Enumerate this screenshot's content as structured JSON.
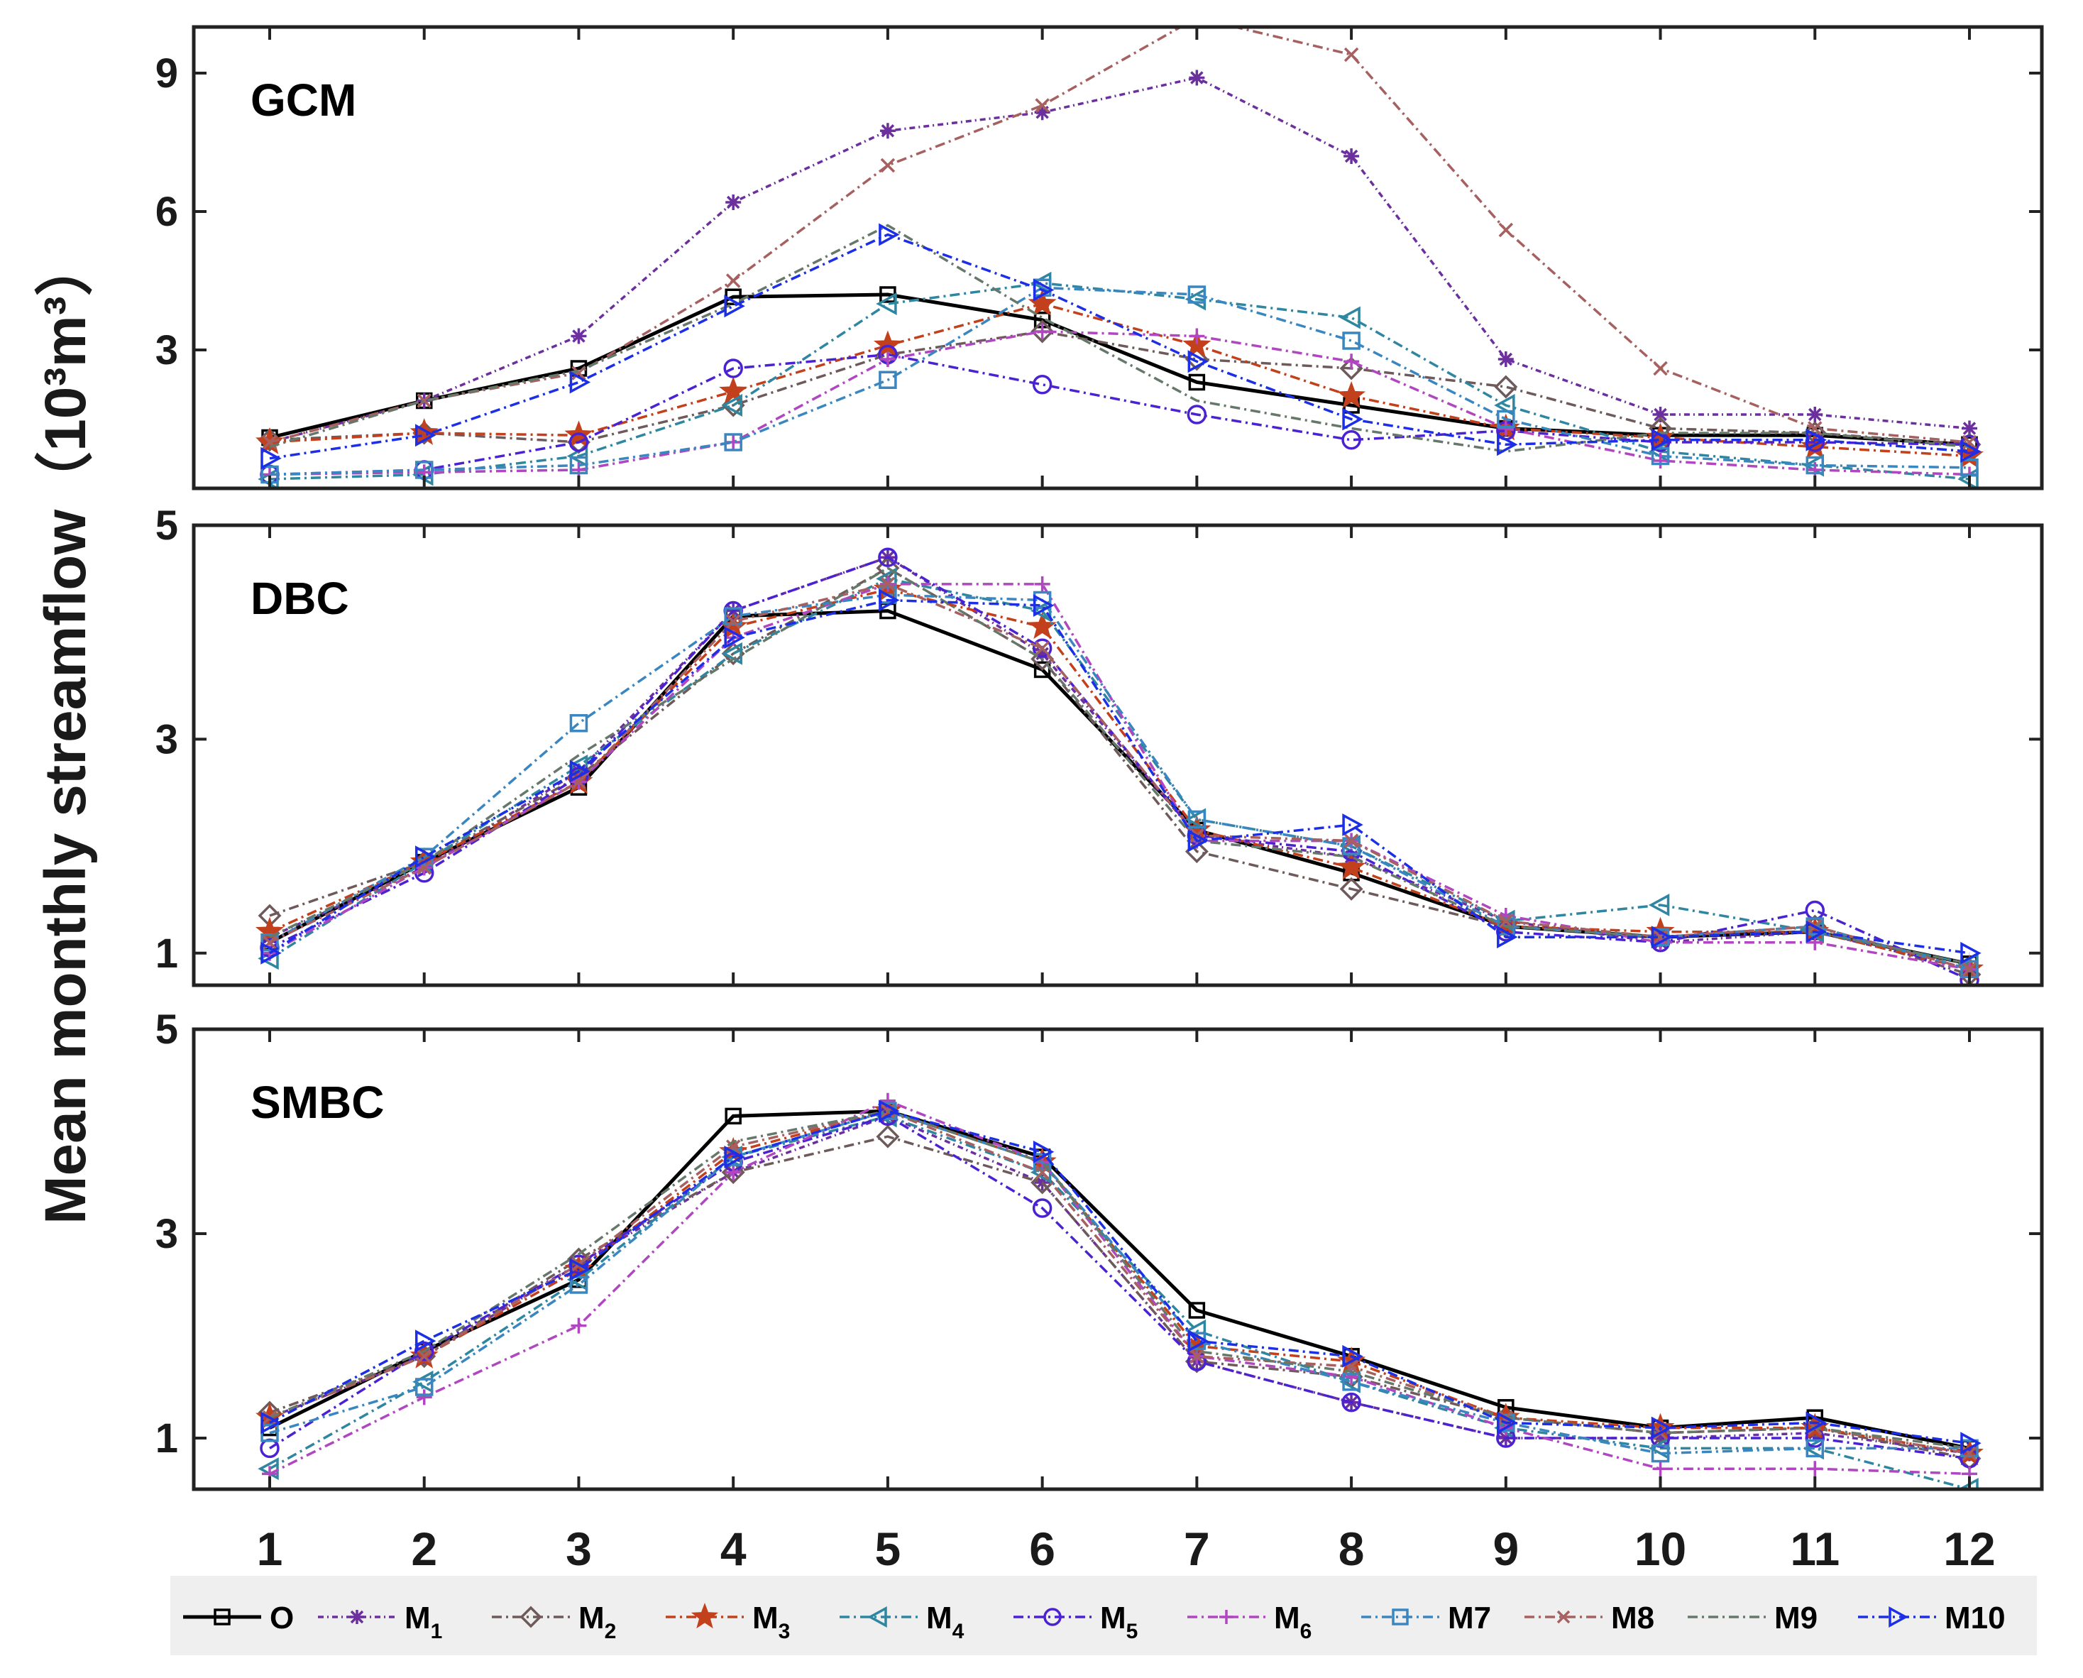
{
  "ylabel": "Mean monthly streamflow",
  "ylabel_unit": "（10³m³）",
  "chart_data": [
    {
      "type": "line",
      "title": "GCM",
      "categories": [
        "1",
        "2",
        "3",
        "4",
        "5",
        "6",
        "7",
        "8",
        "9",
        "10",
        "11",
        "12"
      ],
      "x": [
        1,
        2,
        3,
        4,
        5,
        6,
        7,
        8,
        9,
        10,
        11,
        12
      ],
      "ylim": [
        0,
        10
      ],
      "yticks": [
        "3",
        "6",
        "9"
      ],
      "series": [
        {
          "name": "O",
          "values": [
            1.1,
            1.9,
            2.6,
            4.15,
            4.2,
            3.65,
            2.3,
            1.8,
            1.3,
            1.15,
            1.15,
            0.95
          ]
        },
        {
          "name": "M1",
          "values": [
            1.0,
            1.9,
            3.3,
            6.2,
            7.75,
            8.15,
            8.9,
            7.2,
            2.8,
            1.6,
            1.6,
            1.3
          ]
        },
        {
          "name": "M2",
          "values": [
            1.05,
            1.2,
            1.0,
            1.8,
            2.9,
            3.4,
            2.8,
            2.6,
            2.2,
            1.3,
            1.2,
            0.95
          ]
        },
        {
          "name": "M3",
          "values": [
            1.0,
            1.2,
            1.15,
            2.1,
            3.1,
            4.0,
            3.1,
            2.0,
            1.3,
            1.1,
            0.9,
            0.7
          ]
        },
        {
          "name": "M4",
          "values": [
            0.2,
            0.3,
            0.7,
            1.8,
            4.0,
            4.45,
            4.1,
            3.7,
            1.8,
            0.8,
            0.5,
            0.2
          ]
        },
        {
          "name": "M5",
          "values": [
            0.3,
            0.4,
            1.0,
            2.6,
            2.9,
            2.25,
            1.6,
            1.05,
            1.25,
            1.0,
            1.0,
            0.95
          ]
        },
        {
          "name": "M6",
          "values": [
            0.3,
            0.35,
            0.4,
            1.0,
            2.8,
            3.4,
            3.3,
            2.75,
            1.3,
            0.6,
            0.4,
            0.3
          ]
        },
        {
          "name": "M7",
          "values": [
            0.3,
            0.4,
            0.5,
            1.0,
            2.35,
            4.35,
            4.2,
            3.2,
            1.5,
            0.7,
            0.5,
            0.45
          ]
        },
        {
          "name": "M8",
          "values": [
            1.0,
            1.9,
            2.5,
            4.5,
            7.0,
            8.3,
            10.2,
            9.4,
            5.6,
            2.6,
            1.3,
            1.0
          ]
        },
        {
          "name": "M9",
          "values": [
            0.9,
            1.9,
            2.55,
            4.0,
            5.7,
            3.7,
            1.9,
            1.3,
            0.8,
            1.2,
            1.2,
            0.9
          ]
        },
        {
          "name": "M10",
          "values": [
            0.65,
            1.15,
            2.3,
            3.95,
            5.5,
            4.3,
            2.75,
            1.5,
            0.95,
            1.05,
            1.05,
            0.8
          ]
        }
      ]
    },
    {
      "type": "line",
      "title": "DBC",
      "categories": [
        "1",
        "2",
        "3",
        "4",
        "5",
        "6",
        "7",
        "8",
        "9",
        "10",
        "11",
        "12"
      ],
      "x": [
        1,
        2,
        3,
        4,
        5,
        6,
        7,
        8,
        9,
        10,
        11,
        12
      ],
      "ylim": [
        0.7,
        5
      ],
      "yticks": [
        "1",
        "3",
        "5"
      ],
      "series": [
        {
          "name": "O",
          "values": [
            1.1,
            1.85,
            2.55,
            4.15,
            4.2,
            3.65,
            2.15,
            1.75,
            1.25,
            1.15,
            1.2,
            0.9
          ]
        },
        {
          "name": "M1",
          "values": [
            1.15,
            1.8,
            2.7,
            4.2,
            4.7,
            3.8,
            2.1,
            1.9,
            1.3,
            1.1,
            1.2,
            0.85
          ]
        },
        {
          "name": "M2",
          "values": [
            1.35,
            1.85,
            2.65,
            3.8,
            4.6,
            3.75,
            1.95,
            1.6,
            1.25,
            1.15,
            1.25,
            0.8
          ]
        },
        {
          "name": "M3",
          "values": [
            1.2,
            1.85,
            2.6,
            4.05,
            4.4,
            4.05,
            2.15,
            1.8,
            1.25,
            1.2,
            1.2,
            0.85
          ]
        },
        {
          "name": "M4",
          "values": [
            0.95,
            1.85,
            2.75,
            3.8,
            4.5,
            4.2,
            2.25,
            2.0,
            1.3,
            1.45,
            1.2,
            0.9
          ]
        },
        {
          "name": "M5",
          "values": [
            1.05,
            1.75,
            2.65,
            4.2,
            4.7,
            3.85,
            2.1,
            1.95,
            1.2,
            1.1,
            1.4,
            0.75
          ]
        },
        {
          "name": "M6",
          "values": [
            1.0,
            1.8,
            2.6,
            3.95,
            4.45,
            4.45,
            2.05,
            2.05,
            1.35,
            1.1,
            1.1,
            0.85
          ]
        },
        {
          "name": "M7",
          "values": [
            1.1,
            1.9,
            3.15,
            4.15,
            4.35,
            4.3,
            2.25,
            2.0,
            1.25,
            1.15,
            1.25,
            0.85
          ]
        },
        {
          "name": "M8",
          "values": [
            1.1,
            1.8,
            2.6,
            4.1,
            4.45,
            3.85,
            2.1,
            2.05,
            1.3,
            1.15,
            1.25,
            0.85
          ]
        },
        {
          "name": "M9",
          "values": [
            1.15,
            1.85,
            2.85,
            3.75,
            4.6,
            3.75,
            2.05,
            1.9,
            1.25,
            1.15,
            1.2,
            0.9
          ]
        },
        {
          "name": "M10",
          "values": [
            1.0,
            1.9,
            2.7,
            3.95,
            4.3,
            4.25,
            2.05,
            2.2,
            1.15,
            1.15,
            1.2,
            1.0
          ]
        }
      ]
    },
    {
      "type": "line",
      "title": "SMBC",
      "categories": [
        "1",
        "2",
        "3",
        "4",
        "5",
        "6",
        "7",
        "8",
        "9",
        "10",
        "11",
        "12"
      ],
      "x": [
        1,
        2,
        3,
        4,
        5,
        6,
        7,
        8,
        9,
        10,
        11,
        12
      ],
      "ylim": [
        0.5,
        5
      ],
      "yticks": [
        "1",
        "3",
        "5"
      ],
      "series": [
        {
          "name": "O",
          "values": [
            1.1,
            1.85,
            2.55,
            4.15,
            4.2,
            3.75,
            2.25,
            1.8,
            1.3,
            1.1,
            1.2,
            0.9
          ]
        },
        {
          "name": "M1",
          "values": [
            1.2,
            1.8,
            2.7,
            3.6,
            4.15,
            3.5,
            1.75,
            1.35,
            1.0,
            1.0,
            1.05,
            0.85
          ]
        },
        {
          "name": "M2",
          "values": [
            1.25,
            1.8,
            2.75,
            3.6,
            3.95,
            3.5,
            1.75,
            1.6,
            1.2,
            1.05,
            1.1,
            0.8
          ]
        },
        {
          "name": "M3",
          "values": [
            1.2,
            1.8,
            2.65,
            3.8,
            4.2,
            3.7,
            1.9,
            1.75,
            1.2,
            1.1,
            1.1,
            0.85
          ]
        },
        {
          "name": "M4",
          "values": [
            0.7,
            1.55,
            2.55,
            3.75,
            4.15,
            3.6,
            2.05,
            1.55,
            1.1,
            0.9,
            0.9,
            0.5
          ]
        },
        {
          "name": "M5",
          "values": [
            0.9,
            1.85,
            2.7,
            3.7,
            4.15,
            3.25,
            1.75,
            1.35,
            1.0,
            1.0,
            1.0,
            0.8
          ]
        },
        {
          "name": "M6",
          "values": [
            0.65,
            1.4,
            2.1,
            3.6,
            4.3,
            3.7,
            1.8,
            1.6,
            1.1,
            0.7,
            0.7,
            0.65
          ]
        },
        {
          "name": "M7",
          "values": [
            1.05,
            1.5,
            2.5,
            3.75,
            4.2,
            3.7,
            1.95,
            1.55,
            1.15,
            0.85,
            0.9,
            0.9
          ]
        },
        {
          "name": "M8",
          "values": [
            1.2,
            1.8,
            2.7,
            3.85,
            4.2,
            3.6,
            1.8,
            1.7,
            1.2,
            1.05,
            1.1,
            0.85
          ]
        },
        {
          "name": "M9",
          "values": [
            1.2,
            1.85,
            2.8,
            3.9,
            4.2,
            3.7,
            1.85,
            1.65,
            1.2,
            1.05,
            1.1,
            0.9
          ]
        },
        {
          "name": "M10",
          "values": [
            1.15,
            1.95,
            2.65,
            3.75,
            4.2,
            3.8,
            1.95,
            1.8,
            1.15,
            1.1,
            1.15,
            0.95
          ]
        }
      ]
    }
  ],
  "legend": [
    {
      "name": "O",
      "label": "O",
      "sub": "",
      "color": "#000000",
      "marker": "square",
      "dash": ""
    },
    {
      "name": "M1",
      "label": "M",
      "sub": "1",
      "color": "#6b2f9e",
      "marker": "asterisk",
      "dash": "8,5,2,5"
    },
    {
      "name": "M2",
      "label": "M",
      "sub": "2",
      "color": "#6e5a5a",
      "marker": "diamond",
      "dash": "14,6,3,6"
    },
    {
      "name": "M3",
      "label": "M",
      "sub": "3",
      "color": "#c2401c",
      "marker": "star",
      "dash": "14,6,3,6"
    },
    {
      "name": "M4",
      "label": "M",
      "sub": "4",
      "color": "#2f86a0",
      "marker": "triangle-left",
      "dash": "14,6,3,6"
    },
    {
      "name": "M5",
      "label": "M",
      "sub": "5",
      "color": "#4b22d2",
      "marker": "circle",
      "dash": "14,6,3,6"
    },
    {
      "name": "M6",
      "label": "M",
      "sub": "6",
      "color": "#b046c0",
      "marker": "plus",
      "dash": "14,6,3,6"
    },
    {
      "name": "M7",
      "label": "M7",
      "sub": "",
      "color": "#3a86c0",
      "marker": "square",
      "dash": "14,6,3,6"
    },
    {
      "name": "M8",
      "label": "M8",
      "sub": "",
      "color": "#a66060",
      "marker": "x",
      "dash": "14,6,3,6"
    },
    {
      "name": "M9",
      "label": "M9",
      "sub": "",
      "color": "#66786a",
      "marker": "none",
      "dash": "14,6,3,6"
    },
    {
      "name": "M10",
      "label": "M10",
      "sub": "",
      "color": "#1c2ee6",
      "marker": "triangle-right",
      "dash": "14,6,3,6"
    }
  ]
}
